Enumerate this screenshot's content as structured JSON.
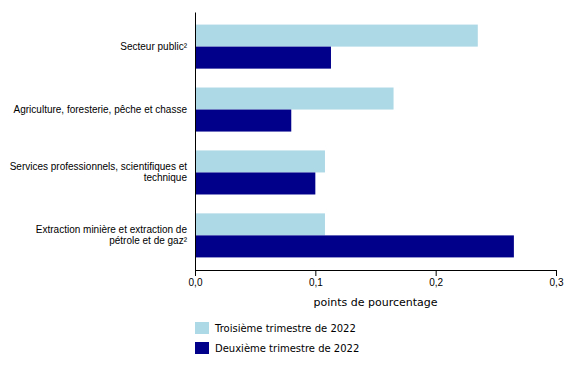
{
  "chart_data": {
    "type": "bar",
    "orientation": "horizontal",
    "categories": [
      "Secteur public²",
      "Agriculture, foresterie, pêche et chasse",
      "Services professionnels, scientifiques et technique",
      "Extraction minière et extraction de pétrole et de gaz²"
    ],
    "series": [
      {
        "name": "Troisième trimestre de 2022",
        "color": "#add8e6",
        "values": [
          0.235,
          0.165,
          0.108,
          0.108
        ]
      },
      {
        "name": "Deuxième trimestre de 2022",
        "color": "#00008b",
        "values": [
          0.113,
          0.08,
          0.1,
          0.265
        ]
      }
    ],
    "xlabel": "points de pourcentage",
    "xlim": [
      0,
      0.3
    ],
    "xticks": [
      {
        "value": 0.0,
        "label": "0,0"
      },
      {
        "value": 0.1,
        "label": "0,1"
      },
      {
        "value": 0.2,
        "label": "0,2"
      },
      {
        "value": 0.3,
        "label": "0,3"
      }
    ],
    "grid": false,
    "legend": "bottom"
  }
}
